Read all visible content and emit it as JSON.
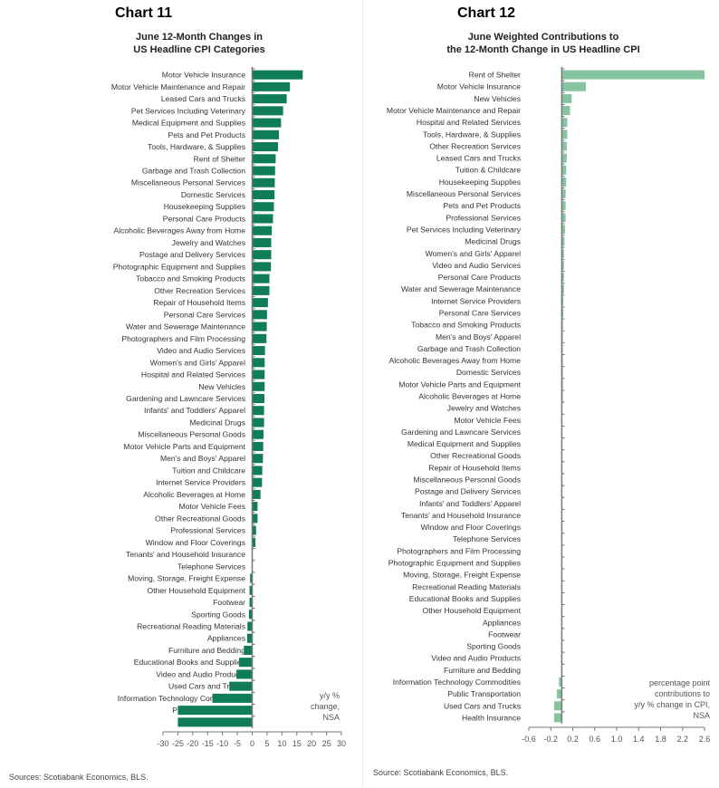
{
  "chart_data": [
    {
      "type": "bar",
      "orientation": "horizontal",
      "title": "Chart 11",
      "subtitle": "June 12-Month Changes in US Headline CPI Categories",
      "subtitle_lines": [
        "June 12-Month Changes in",
        "US Headline CPI Categories"
      ],
      "note_lines": [
        "y/y %",
        "change,",
        "NSA"
      ],
      "source": "Sources: Scotiabank Economics, BLS.",
      "xlim": [
        -30,
        30
      ],
      "xticks": [
        -30,
        -25,
        -20,
        -15,
        -10,
        -5,
        0,
        5,
        10,
        15,
        20,
        25,
        30
      ],
      "bar_color": "#0f7d55",
      "categories": [
        "Motor Vehicle Insurance",
        "Motor Vehicle Maintenance and Repair",
        "Leased Cars and Trucks",
        "Pet Services Including Veterinary",
        "Medical Equipment and Supplies",
        "Pets and Pet Products",
        "Tools, Hardware, & Supplies",
        "Rent of Shelter",
        "Garbage and Trash Collection",
        "Miscellaneous Personal Services",
        "Domestic Services",
        "Housekeeping Supplies",
        "Personal Care Products",
        "Alcoholic Beverages Away from Home",
        "Jewelry and Watches",
        "Postage and Delivery Services",
        "Photographic Equipment and Supplies",
        "Tobacco and Smoking Products",
        "Other Recreation Services",
        "Repair of Household Items",
        "Personal Care Services",
        "Water and Sewerage Maintenance",
        "Photographers and Film Processing",
        "Video and Audio Services",
        "Women's and Girls' Apparel",
        "Hospital and Related Services",
        "New Vehicles",
        "Gardening and Lawncare Services",
        "Infants' and Toddlers' Apparel",
        "Medicinal Drugs",
        "Miscellaneous Personal Goods",
        "Motor Vehicle Parts and Equipment",
        "Men's and Boys' Apparel",
        "Tuition and Childcare",
        "Internet Service Providers",
        "Alcoholic Beverages at Home",
        "Motor Vehicle Fees",
        "Other Recreational Goods",
        "Professional Services",
        "Window and Floor Coverings",
        "Tenants' and Household Insurance",
        "Telephone Services",
        "Moving, Storage, Freight Expense",
        "Other Household Equipment",
        "Footwear",
        "Sporting Goods",
        "Recreational Reading Materials",
        "Appliances",
        "Furniture and Bedding",
        "Educational Books and Supplies",
        "Video and Audio Products",
        "Used Cars and Trucks",
        "Information Technology Commodities",
        "Public Transportation",
        "Health Insurance"
      ],
      "values": [
        17.0,
        12.7,
        11.6,
        10.4,
        9.7,
        9.0,
        8.7,
        7.9,
        7.7,
        7.6,
        7.5,
        7.3,
        7.0,
        6.6,
        6.4,
        6.4,
        6.3,
        5.8,
        5.8,
        5.3,
        5.0,
        4.9,
        4.8,
        4.3,
        4.2,
        4.2,
        4.2,
        4.1,
        4.0,
        4.0,
        3.8,
        3.7,
        3.6,
        3.4,
        3.3,
        2.8,
        1.8,
        1.8,
        1.3,
        1.1,
        0.1,
        0.0,
        -0.7,
        -0.9,
        -0.9,
        -1.1,
        -1.6,
        -1.7,
        -2.8,
        -4.4,
        -5.3,
        -7.7,
        -13.4,
        -25.0,
        -25.0
      ]
    },
    {
      "type": "bar",
      "orientation": "horizontal",
      "title": "Chart 12",
      "subtitle": "June Weighted Contributions to the 12-Month Change in US Headline CPI",
      "subtitle_lines": [
        "June Weighted Contributions to",
        "the 12-Month Change in US Headline CPI"
      ],
      "note_lines": [
        "percentage point",
        "contributions to",
        "y/y % change in CPI,",
        "NSA"
      ],
      "source": "Source: Scotiabank Economics, BLS.",
      "xlim": [
        -0.6,
        2.6
      ],
      "xticks": [
        -0.6,
        -0.2,
        0.2,
        0.6,
        1.0,
        1.4,
        1.8,
        2.2,
        2.6
      ],
      "xtick_labels": [
        "-0.6",
        "-0.2",
        "0.2",
        "0.6",
        "1.0",
        "1.4",
        "1.8",
        "2.2",
        "2.6"
      ],
      "bar_color": "#86c4a0",
      "categories": [
        "Rent of Shelter",
        "Motor Vehicle Insurance",
        "New Vehicles",
        "Motor Vehicle Maintenance and Repair",
        "Hospital and Related Services",
        "Tools, Hardware, & Supplies",
        "Other Recreation Services",
        "Leased Cars and Trucks",
        "Tuition & Childcare",
        "Housekeeping Supplies",
        "Miscellaneous Personal Services",
        "Pets and Pet Products",
        "Professional Services",
        "Pet Services Including Veterinary",
        "Medicinal Drugs",
        "Women's and Girls' Apparel",
        "Video and Audio Services",
        "Personal Care Products",
        "Water and Sewerage Maintenance",
        "Internet Service Providers",
        "Personal Care Services",
        "Tobacco and Smoking Products",
        "Men's and Boys' Apparel",
        "Garbage and Trash Collection",
        "Alcoholic Beverages Away from Home",
        "Domestic Services",
        "Motor Vehicle Parts and Equipment",
        "Alcoholic Beverages at Home",
        "Jewelry and Watches",
        "Motor Vehicle Fees",
        "Gardening and Lawncare Services",
        "Medical Equipment and Supplies",
        "Other Recreational Goods",
        "Repair of Household Items",
        "Miscellaneous Personal Goods",
        "Postage and Delivery Services",
        "Infants' and Toddlers' Apparel",
        "Tenants' and Household Insurance",
        "Window and Floor Coverings",
        "Telephone Services",
        "Photographers and Film Processing",
        "Photographic Equipment and Supplies",
        "Moving, Storage, Freight Expense",
        "Recreational Reading Materials",
        "Educational Books and Supplies",
        "Other Household Equipment",
        "Appliances",
        "Footwear",
        "Sporting Goods",
        "Video and Audio Products",
        "Furniture and Bedding",
        "Information Technology Commodities",
        "Public Transportation",
        "Used Cars and Trucks",
        "Health Insurance"
      ],
      "values": [
        2.6,
        0.44,
        0.18,
        0.15,
        0.1,
        0.1,
        0.09,
        0.09,
        0.08,
        0.08,
        0.07,
        0.07,
        0.07,
        0.06,
        0.05,
        0.04,
        0.04,
        0.04,
        0.04,
        0.03,
        0.03,
        0.02,
        0.02,
        0.02,
        0.02,
        0.02,
        0.02,
        0.02,
        0.01,
        0.01,
        0.01,
        0.01,
        0.01,
        0.01,
        0.01,
        0.01,
        0.0,
        0.0,
        0.0,
        0.0,
        0.0,
        0.0,
        0.0,
        0.0,
        0.0,
        0.0,
        0.0,
        0.0,
        0.0,
        -0.01,
        -0.01,
        -0.05,
        -0.09,
        -0.14,
        -0.14
      ]
    }
  ]
}
